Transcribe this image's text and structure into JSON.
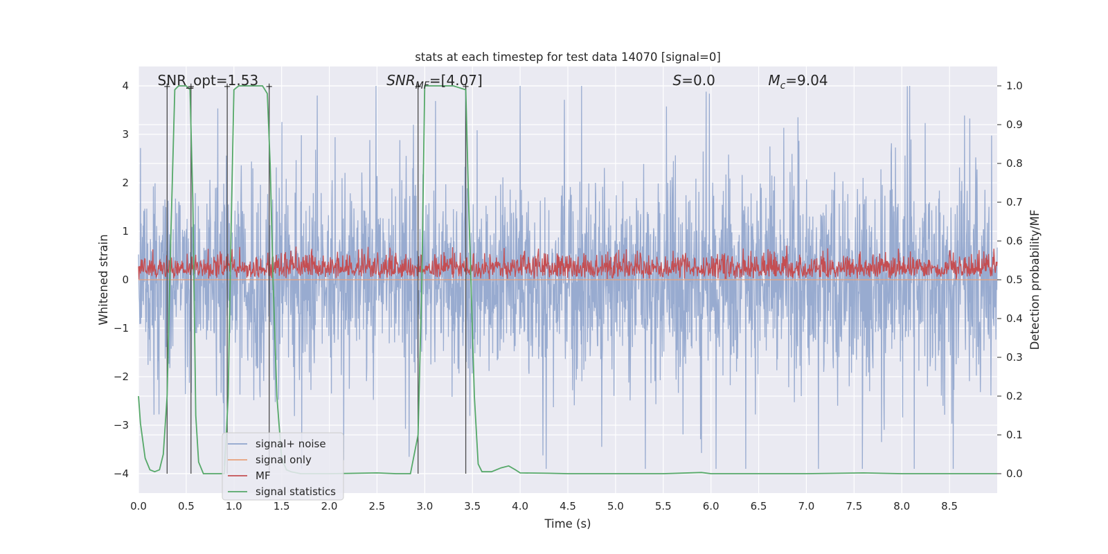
{
  "chart_data": {
    "type": "line",
    "title": "stats at each timestep for test data 14070 [signal=0]",
    "xlabel": "Time (s)",
    "ylabel_left": "Whitened strain",
    "ylabel_right": "Detection probability/MF",
    "xlim": [
      0.0,
      9.0
    ],
    "ylim_left": [
      -4.4,
      4.4
    ],
    "ylim_right": [
      -0.05,
      1.05
    ],
    "x_ticks": [
      "0.0",
      "0.5",
      "1.0",
      "1.5",
      "2.0",
      "2.5",
      "3.0",
      "3.5",
      "4.0",
      "4.5",
      "5.0",
      "5.5",
      "6.0",
      "6.5",
      "7.0",
      "7.5",
      "8.0",
      "8.5"
    ],
    "y_ticks_left": [
      "4",
      "3",
      "2",
      "1",
      "0",
      "−1",
      "−2",
      "−3",
      "−4"
    ],
    "y_ticks_right": [
      "1.0",
      "0.9",
      "0.8",
      "0.7",
      "0.6",
      "0.5",
      "0.4",
      "0.3",
      "0.2",
      "0.1",
      "0.0"
    ],
    "grid": true,
    "legend_position": "lower-left",
    "annotations": [
      {
        "key": "snr_opt",
        "text": "SNR_opt=1.53",
        "x": 0.2
      },
      {
        "key": "snr_mf",
        "text": "SNR",
        "sub": "MF",
        "rest": "=[4.07]",
        "italic": true,
        "x": 2.6
      },
      {
        "key": "s",
        "text": "S",
        "rest": "=0.0",
        "italic": true,
        "x": 5.6
      },
      {
        "key": "mc",
        "text": "M",
        "sub": "c",
        "rest": "=9.04",
        "italic": true,
        "x": 6.6
      }
    ],
    "series": [
      {
        "name": "signal+ noise",
        "color": "#8fa4cc",
        "axis": "left",
        "note": "whitened strain, approx. range -3.9 to 3.9"
      },
      {
        "name": "signal only",
        "color": "#e8a07a",
        "axis": "left",
        "values": [
          0
        ]
      },
      {
        "name": "MF",
        "color": "#c44e52",
        "axis": "right",
        "note": "approx. range 0.50 to 0.63"
      },
      {
        "name": "signal statistics",
        "color": "#55a868",
        "axis": "right",
        "x": [
          0.0,
          0.02,
          0.07,
          0.12,
          0.17,
          0.22,
          0.26,
          0.3,
          0.34,
          0.38,
          0.42,
          0.5,
          0.54,
          0.57,
          0.6,
          0.63,
          0.68,
          0.72,
          0.8,
          0.9,
          0.94,
          0.97,
          1.0,
          1.05,
          1.2,
          1.3,
          1.35,
          1.38,
          1.41,
          1.45,
          1.5,
          1.55,
          1.6,
          1.7,
          2.0,
          2.5,
          2.7,
          2.85,
          2.93,
          2.97,
          3.0,
          3.1,
          3.3,
          3.43,
          3.46,
          3.52,
          3.56,
          3.6,
          3.7,
          3.8,
          3.88,
          3.95,
          4.0,
          4.3,
          4.5,
          5.0,
          5.5,
          5.9,
          6.0,
          6.2,
          7.0,
          7.6,
          8.0,
          9.0
        ],
        "y": [
          0.2,
          0.13,
          0.04,
          0.01,
          0.005,
          0.01,
          0.05,
          0.2,
          0.62,
          0.99,
          1.0,
          1.0,
          0.99,
          0.7,
          0.15,
          0.03,
          0.0,
          0.0,
          0.0,
          0.0,
          0.2,
          0.62,
          0.99,
          1.0,
          1.0,
          1.0,
          0.98,
          0.8,
          0.5,
          0.2,
          0.04,
          0.01,
          0.005,
          0.0,
          0.0,
          0.002,
          0.0,
          0.0,
          0.1,
          0.5,
          1.0,
          1.0,
          1.0,
          0.99,
          0.7,
          0.2,
          0.025,
          0.005,
          0.005,
          0.015,
          0.02,
          0.01,
          0.002,
          0.001,
          0.0,
          0.0,
          0.0,
          0.003,
          0.0,
          0.0,
          0.0,
          0.002,
          0.0,
          0.0
        ]
      }
    ],
    "vertical_markers": [
      {
        "x": 0.3,
        "label": "+",
        "top": 4.0,
        "bottom": -4.0
      },
      {
        "x": 0.55,
        "label": "+",
        "top": 4.0,
        "bottom": -4.0
      },
      {
        "x": 0.93,
        "label": "+",
        "top": 4.0,
        "bottom": -4.0
      },
      {
        "x": 1.37,
        "label": "+",
        "top": 4.0,
        "bottom": -4.0
      },
      {
        "x": 2.93,
        "label": "+",
        "top": 4.0,
        "bottom": -4.0
      },
      {
        "x": 3.43,
        "label": "+",
        "top": 4.0,
        "bottom": -4.0
      }
    ]
  }
}
